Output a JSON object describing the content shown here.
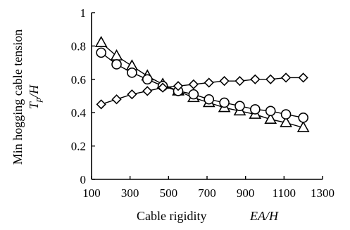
{
  "chart_data": {
    "type": "line",
    "xlabel": "Cable rigidity",
    "xlabel_math": "EA/H",
    "ylabel": "Min hogging cable tension",
    "ylabel_math": "T_p/H",
    "xlim": [
      100,
      1300
    ],
    "ylim": [
      0,
      1
    ],
    "xticks": [
      100,
      300,
      500,
      700,
      900,
      1100,
      1300
    ],
    "yticks": [
      0,
      0.2,
      0.4,
      0.6,
      0.8,
      1
    ],
    "grid": false,
    "series": [
      {
        "marker": "triangle",
        "x": [
          150,
          230,
          310,
          390,
          470,
          550,
          630,
          710,
          790,
          870,
          950,
          1030,
          1110,
          1200
        ],
        "y": [
          0.82,
          0.74,
          0.68,
          0.62,
          0.57,
          0.53,
          0.49,
          0.46,
          0.43,
          0.41,
          0.39,
          0.36,
          0.34,
          0.31
        ]
      },
      {
        "marker": "circle",
        "x": [
          150,
          230,
          310,
          390,
          470,
          550,
          630,
          710,
          790,
          870,
          950,
          1030,
          1110,
          1200
        ],
        "y": [
          0.76,
          0.69,
          0.64,
          0.6,
          0.56,
          0.53,
          0.51,
          0.48,
          0.46,
          0.44,
          0.42,
          0.41,
          0.39,
          0.37
        ]
      },
      {
        "marker": "diamond",
        "x": [
          150,
          230,
          310,
          390,
          470,
          550,
          630,
          710,
          790,
          870,
          950,
          1030,
          1110,
          1200
        ],
        "y": [
          0.45,
          0.48,
          0.51,
          0.53,
          0.55,
          0.56,
          0.57,
          0.58,
          0.59,
          0.59,
          0.6,
          0.6,
          0.61,
          0.61
        ]
      }
    ]
  }
}
